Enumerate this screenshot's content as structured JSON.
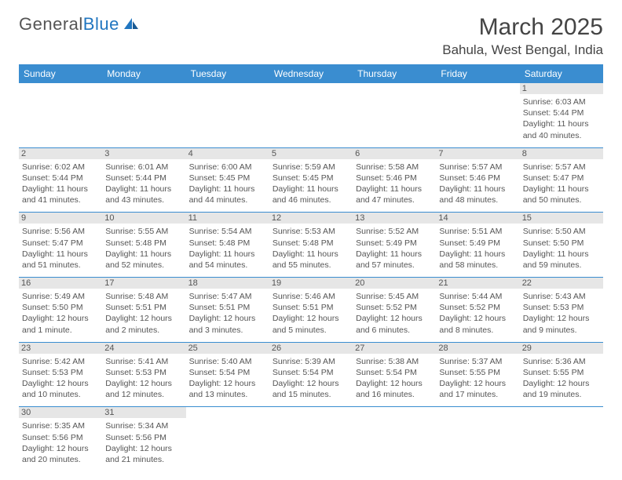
{
  "brand": {
    "part1": "General",
    "part2": "Blue"
  },
  "title": "March 2025",
  "location": "Bahula, West Bengal, India",
  "colors": {
    "header_bg": "#3a8dd0",
    "daynum_bg": "#e6e6e6",
    "border": "#3a8dd0",
    "text": "#555555"
  },
  "weekdays": [
    "Sunday",
    "Monday",
    "Tuesday",
    "Wednesday",
    "Thursday",
    "Friday",
    "Saturday"
  ],
  "weeks": [
    [
      {
        "empty": true
      },
      {
        "empty": true
      },
      {
        "empty": true
      },
      {
        "empty": true
      },
      {
        "empty": true
      },
      {
        "empty": true
      },
      {
        "day": "1",
        "sunrise": "Sunrise: 6:03 AM",
        "sunset": "Sunset: 5:44 PM",
        "daylight": "Daylight: 11 hours and 40 minutes."
      }
    ],
    [
      {
        "day": "2",
        "sunrise": "Sunrise: 6:02 AM",
        "sunset": "Sunset: 5:44 PM",
        "daylight": "Daylight: 11 hours and 41 minutes."
      },
      {
        "day": "3",
        "sunrise": "Sunrise: 6:01 AM",
        "sunset": "Sunset: 5:44 PM",
        "daylight": "Daylight: 11 hours and 43 minutes."
      },
      {
        "day": "4",
        "sunrise": "Sunrise: 6:00 AM",
        "sunset": "Sunset: 5:45 PM",
        "daylight": "Daylight: 11 hours and 44 minutes."
      },
      {
        "day": "5",
        "sunrise": "Sunrise: 5:59 AM",
        "sunset": "Sunset: 5:45 PM",
        "daylight": "Daylight: 11 hours and 46 minutes."
      },
      {
        "day": "6",
        "sunrise": "Sunrise: 5:58 AM",
        "sunset": "Sunset: 5:46 PM",
        "daylight": "Daylight: 11 hours and 47 minutes."
      },
      {
        "day": "7",
        "sunrise": "Sunrise: 5:57 AM",
        "sunset": "Sunset: 5:46 PM",
        "daylight": "Daylight: 11 hours and 48 minutes."
      },
      {
        "day": "8",
        "sunrise": "Sunrise: 5:57 AM",
        "sunset": "Sunset: 5:47 PM",
        "daylight": "Daylight: 11 hours and 50 minutes."
      }
    ],
    [
      {
        "day": "9",
        "sunrise": "Sunrise: 5:56 AM",
        "sunset": "Sunset: 5:47 PM",
        "daylight": "Daylight: 11 hours and 51 minutes."
      },
      {
        "day": "10",
        "sunrise": "Sunrise: 5:55 AM",
        "sunset": "Sunset: 5:48 PM",
        "daylight": "Daylight: 11 hours and 52 minutes."
      },
      {
        "day": "11",
        "sunrise": "Sunrise: 5:54 AM",
        "sunset": "Sunset: 5:48 PM",
        "daylight": "Daylight: 11 hours and 54 minutes."
      },
      {
        "day": "12",
        "sunrise": "Sunrise: 5:53 AM",
        "sunset": "Sunset: 5:48 PM",
        "daylight": "Daylight: 11 hours and 55 minutes."
      },
      {
        "day": "13",
        "sunrise": "Sunrise: 5:52 AM",
        "sunset": "Sunset: 5:49 PM",
        "daylight": "Daylight: 11 hours and 57 minutes."
      },
      {
        "day": "14",
        "sunrise": "Sunrise: 5:51 AM",
        "sunset": "Sunset: 5:49 PM",
        "daylight": "Daylight: 11 hours and 58 minutes."
      },
      {
        "day": "15",
        "sunrise": "Sunrise: 5:50 AM",
        "sunset": "Sunset: 5:50 PM",
        "daylight": "Daylight: 11 hours and 59 minutes."
      }
    ],
    [
      {
        "day": "16",
        "sunrise": "Sunrise: 5:49 AM",
        "sunset": "Sunset: 5:50 PM",
        "daylight": "Daylight: 12 hours and 1 minute."
      },
      {
        "day": "17",
        "sunrise": "Sunrise: 5:48 AM",
        "sunset": "Sunset: 5:51 PM",
        "daylight": "Daylight: 12 hours and 2 minutes."
      },
      {
        "day": "18",
        "sunrise": "Sunrise: 5:47 AM",
        "sunset": "Sunset: 5:51 PM",
        "daylight": "Daylight: 12 hours and 3 minutes."
      },
      {
        "day": "19",
        "sunrise": "Sunrise: 5:46 AM",
        "sunset": "Sunset: 5:51 PM",
        "daylight": "Daylight: 12 hours and 5 minutes."
      },
      {
        "day": "20",
        "sunrise": "Sunrise: 5:45 AM",
        "sunset": "Sunset: 5:52 PM",
        "daylight": "Daylight: 12 hours and 6 minutes."
      },
      {
        "day": "21",
        "sunrise": "Sunrise: 5:44 AM",
        "sunset": "Sunset: 5:52 PM",
        "daylight": "Daylight: 12 hours and 8 minutes."
      },
      {
        "day": "22",
        "sunrise": "Sunrise: 5:43 AM",
        "sunset": "Sunset: 5:53 PM",
        "daylight": "Daylight: 12 hours and 9 minutes."
      }
    ],
    [
      {
        "day": "23",
        "sunrise": "Sunrise: 5:42 AM",
        "sunset": "Sunset: 5:53 PM",
        "daylight": "Daylight: 12 hours and 10 minutes."
      },
      {
        "day": "24",
        "sunrise": "Sunrise: 5:41 AM",
        "sunset": "Sunset: 5:53 PM",
        "daylight": "Daylight: 12 hours and 12 minutes."
      },
      {
        "day": "25",
        "sunrise": "Sunrise: 5:40 AM",
        "sunset": "Sunset: 5:54 PM",
        "daylight": "Daylight: 12 hours and 13 minutes."
      },
      {
        "day": "26",
        "sunrise": "Sunrise: 5:39 AM",
        "sunset": "Sunset: 5:54 PM",
        "daylight": "Daylight: 12 hours and 15 minutes."
      },
      {
        "day": "27",
        "sunrise": "Sunrise: 5:38 AM",
        "sunset": "Sunset: 5:54 PM",
        "daylight": "Daylight: 12 hours and 16 minutes."
      },
      {
        "day": "28",
        "sunrise": "Sunrise: 5:37 AM",
        "sunset": "Sunset: 5:55 PM",
        "daylight": "Daylight: 12 hours and 17 minutes."
      },
      {
        "day": "29",
        "sunrise": "Sunrise: 5:36 AM",
        "sunset": "Sunset: 5:55 PM",
        "daylight": "Daylight: 12 hours and 19 minutes."
      }
    ],
    [
      {
        "day": "30",
        "sunrise": "Sunrise: 5:35 AM",
        "sunset": "Sunset: 5:56 PM",
        "daylight": "Daylight: 12 hours and 20 minutes."
      },
      {
        "day": "31",
        "sunrise": "Sunrise: 5:34 AM",
        "sunset": "Sunset: 5:56 PM",
        "daylight": "Daylight: 12 hours and 21 minutes."
      },
      {
        "empty": true
      },
      {
        "empty": true
      },
      {
        "empty": true
      },
      {
        "empty": true
      },
      {
        "empty": true
      }
    ]
  ]
}
